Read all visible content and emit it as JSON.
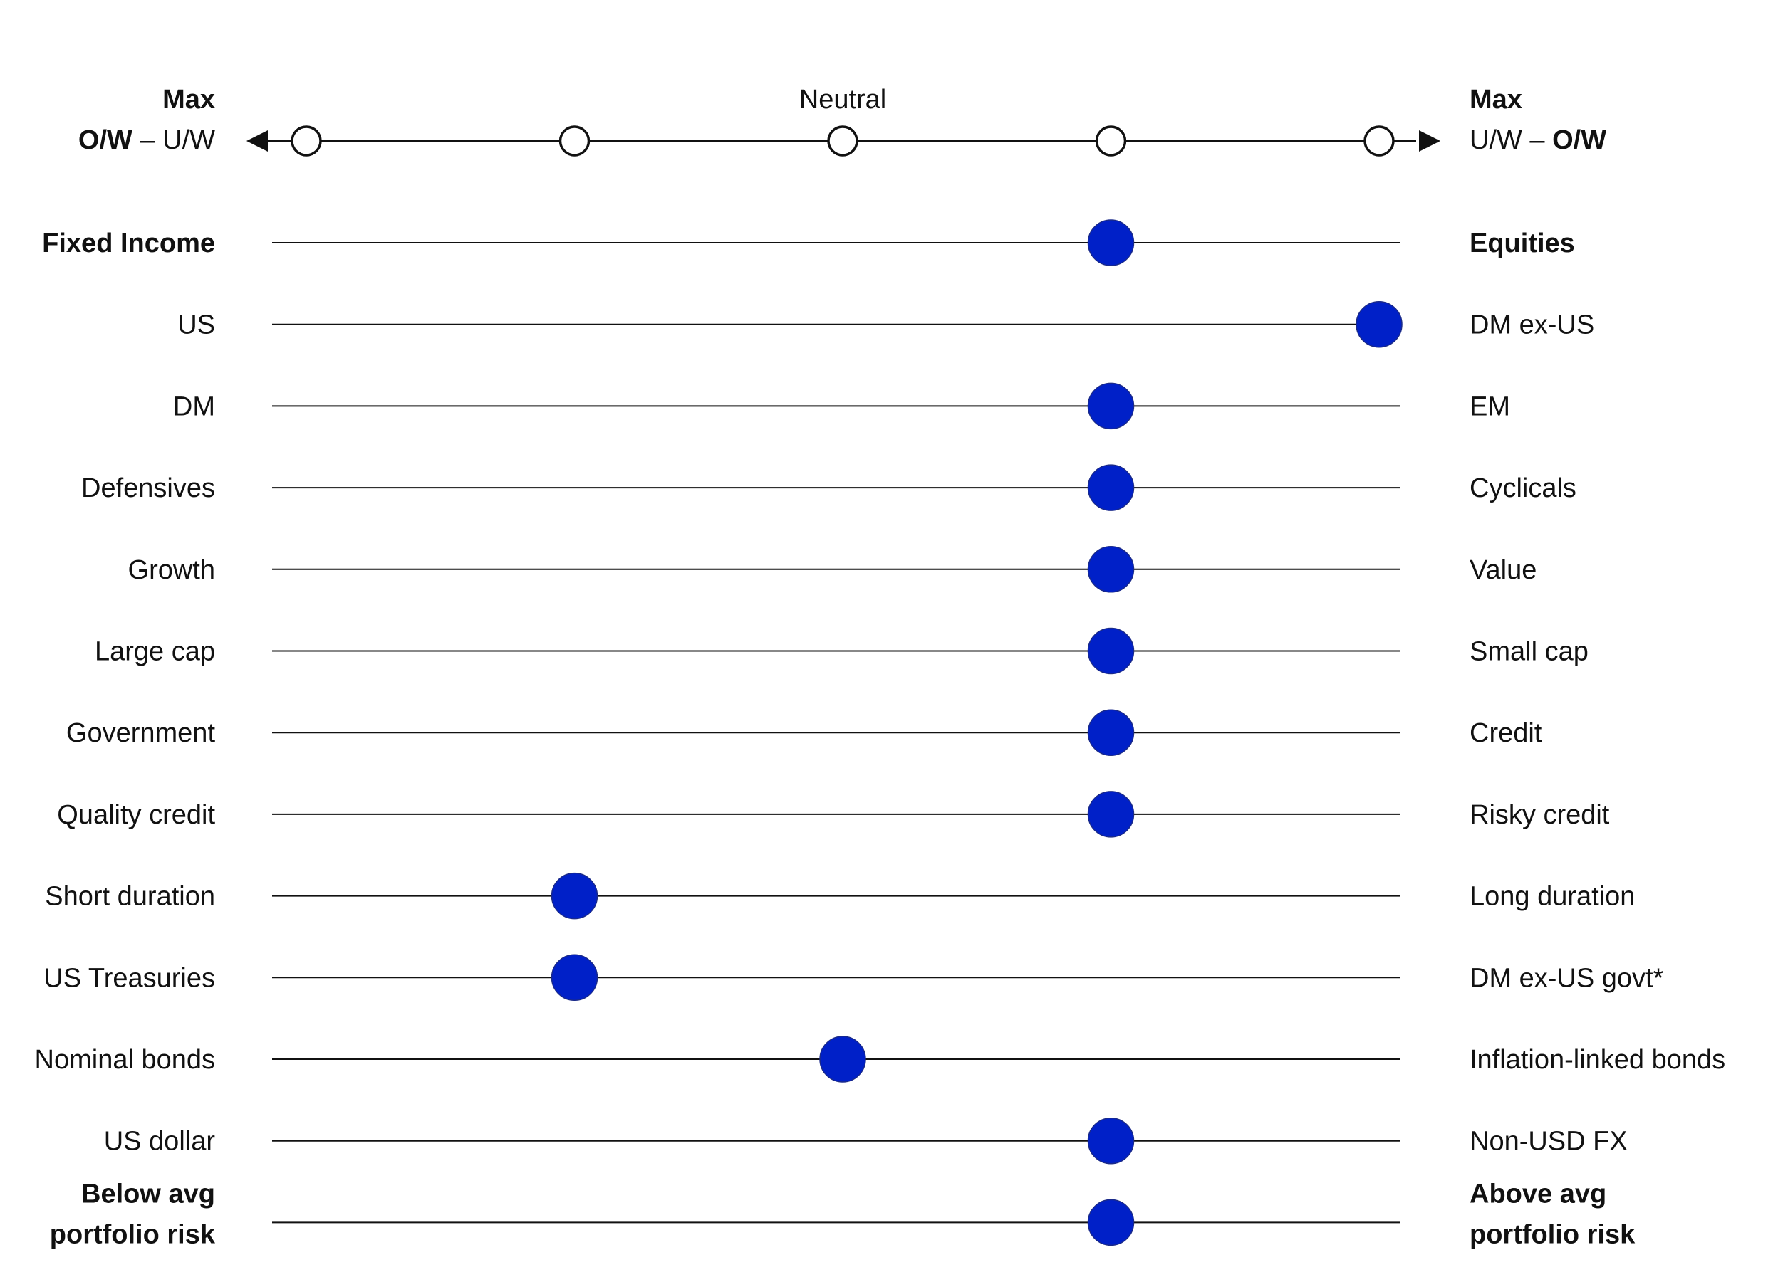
{
  "chart_data": {
    "type": "dot-scale",
    "scale": {
      "left_max_line1": "Max",
      "left_max_bold": "O/W",
      "left_max_plain": " – U/W",
      "center_label": "Neutral",
      "right_max_line1": "Max",
      "right_max_plain": "U/W – ",
      "right_max_bold": "O/W",
      "positions": [
        -2,
        -1,
        0,
        1,
        2
      ],
      "range": [
        -2,
        2
      ]
    },
    "rows": [
      {
        "left": [
          "Fixed Income"
        ],
        "right": [
          "Equities"
        ],
        "value": 1,
        "bold": true
      },
      {
        "left": [
          "US"
        ],
        "right": [
          "DM ex-US"
        ],
        "value": 2,
        "bold": false
      },
      {
        "left": [
          "DM"
        ],
        "right": [
          "EM"
        ],
        "value": 1,
        "bold": false
      },
      {
        "left": [
          "Defensives"
        ],
        "right": [
          "Cyclicals"
        ],
        "value": 1,
        "bold": false
      },
      {
        "left": [
          "Growth"
        ],
        "right": [
          "Value"
        ],
        "value": 1,
        "bold": false
      },
      {
        "left": [
          "Large cap"
        ],
        "right": [
          "Small cap"
        ],
        "value": 1,
        "bold": false
      },
      {
        "left": [
          "Government"
        ],
        "right": [
          "Credit"
        ],
        "value": 1,
        "bold": false
      },
      {
        "left": [
          "Quality credit"
        ],
        "right": [
          "Risky credit"
        ],
        "value": 1,
        "bold": false
      },
      {
        "left": [
          "Short duration"
        ],
        "right": [
          "Long duration"
        ],
        "value": -1,
        "bold": false
      },
      {
        "left": [
          "US Treasuries"
        ],
        "right": [
          "DM ex-US govt*"
        ],
        "value": -1,
        "bold": false
      },
      {
        "left": [
          "Nominal bonds"
        ],
        "right": [
          "Inflation-linked bonds"
        ],
        "value": 0,
        "bold": false
      },
      {
        "left": [
          "US dollar"
        ],
        "right": [
          "Non-USD FX"
        ],
        "value": 1,
        "bold": false
      },
      {
        "left": [
          "Below avg",
          "portfolio risk"
        ],
        "right": [
          "Above avg",
          "portfolio risk"
        ],
        "value": 1,
        "bold": true
      }
    ],
    "colors": {
      "dot": "#0020c8",
      "dot_stroke": "#1a2a8a",
      "line": "#111111"
    }
  }
}
